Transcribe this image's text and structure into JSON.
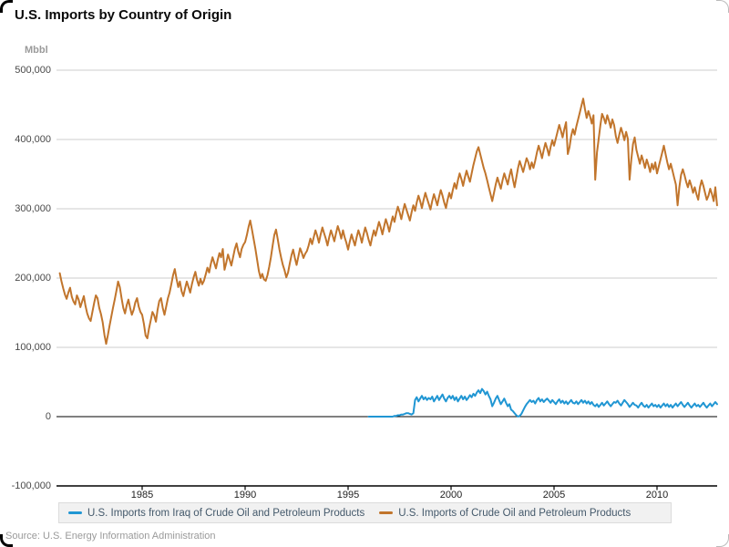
{
  "header": {
    "title": "U.S. Imports by Country of Origin"
  },
  "source": {
    "text": "Source: U.S. Energy Information Administration"
  },
  "chart_data": {
    "type": "line",
    "title": "U.S. Imports by Country of Origin",
    "unit_label": "Mbbl",
    "ylabel": "Mbbl",
    "xlabel": "",
    "grid": true,
    "legend_position": "bottom",
    "y_axis": {
      "min": -100000,
      "max": 500000,
      "tick_interval": 100000,
      "ticks": [
        {
          "value": 500000,
          "label": "500,000"
        },
        {
          "value": 400000,
          "label": "400,000"
        },
        {
          "value": 300000,
          "label": "300,000"
        },
        {
          "value": 200000,
          "label": "200,000"
        },
        {
          "value": 100000,
          "label": "100,000"
        },
        {
          "value": 0,
          "label": "0"
        },
        {
          "value": -100000,
          "label": "-100,000"
        }
      ]
    },
    "x_axis": {
      "start_year": 1981,
      "end_year": 2013,
      "interval": "monthly",
      "ticks": [
        {
          "year": 1985,
          "label": "1985"
        },
        {
          "year": 1990,
          "label": "1990"
        },
        {
          "year": 1995,
          "label": "1995"
        },
        {
          "year": 2000,
          "label": "2000"
        },
        {
          "year": 2005,
          "label": "2005"
        },
        {
          "year": 2010,
          "label": "2010"
        }
      ]
    },
    "series": [
      {
        "name": "U.S. Imports from Iraq of Crude Oil and Petroleum Products",
        "color": "#2096d3",
        "start": "1996-01",
        "interval": "monthly",
        "values": [
          0,
          0,
          0,
          0,
          0,
          0,
          0,
          0,
          0,
          0,
          0,
          0,
          0,
          0,
          0,
          1000,
          1000,
          2000,
          2000,
          3000,
          3000,
          4000,
          5000,
          5000,
          4000,
          3000,
          5000,
          24000,
          28000,
          22000,
          26000,
          30000,
          25000,
          28000,
          24000,
          27000,
          25000,
          29000,
          22000,
          26000,
          30000,
          24000,
          28000,
          32000,
          26000,
          22000,
          27000,
          30000,
          26000,
          30000,
          24000,
          28000,
          22000,
          26000,
          30000,
          25000,
          29000,
          24000,
          27000,
          31000,
          28000,
          33000,
          30000,
          35000,
          38000,
          34000,
          40000,
          37000,
          32000,
          36000,
          30000,
          25000,
          15000,
          20000,
          26000,
          30000,
          24000,
          18000,
          22000,
          26000,
          20000,
          15000,
          18000,
          10000,
          8000,
          5000,
          2000,
          0,
          1000,
          4000,
          9000,
          14000,
          18000,
          21000,
          24000,
          21000,
          23000,
          19000,
          24000,
          27000,
          22000,
          25000,
          21000,
          24000,
          26000,
          23000,
          20000,
          24000,
          21000,
          18000,
          22000,
          25000,
          20000,
          23000,
          19000,
          22000,
          18000,
          21000,
          24000,
          20000,
          19000,
          22000,
          18000,
          21000,
          24000,
          20000,
          23000,
          19000,
          22000,
          18000,
          21000,
          17000,
          15000,
          18000,
          14000,
          17000,
          20000,
          16000,
          19000,
          22000,
          18000,
          15000,
          18000,
          21000,
          20000,
          23000,
          19000,
          16000,
          20000,
          24000,
          21000,
          18000,
          14000,
          17000,
          20000,
          17000,
          16000,
          13000,
          17000,
          20000,
          16000,
          14000,
          17000,
          13000,
          16000,
          19000,
          15000,
          17000,
          14000,
          17000,
          13000,
          16000,
          19000,
          15000,
          18000,
          14000,
          17000,
          13000,
          16000,
          19000,
          15000,
          18000,
          21000,
          17000,
          14000,
          17000,
          20000,
          16000,
          13000,
          16000,
          19000,
          15000,
          17000,
          14000,
          17000,
          20000,
          16000,
          13000,
          16000,
          19000,
          15000,
          18000,
          21000,
          18000
        ]
      },
      {
        "name": "U.S. Imports of Crude Oil and Petroleum Products",
        "color": "#c1752c",
        "start": "1981-01",
        "interval": "monthly",
        "values": [
          207000,
          195000,
          185000,
          176000,
          170000,
          179000,
          186000,
          173000,
          166000,
          162000,
          175000,
          169000,
          158000,
          166000,
          174000,
          160000,
          149000,
          142000,
          138000,
          151000,
          164000,
          175000,
          171000,
          157000,
          148000,
          136000,
          118000,
          105000,
          117000,
          131000,
          144000,
          157000,
          169000,
          182000,
          195000,
          187000,
          171000,
          157000,
          149000,
          161000,
          169000,
          157000,
          147000,
          154000,
          165000,
          171000,
          159000,
          151000,
          147000,
          134000,
          117000,
          113000,
          127000,
          139000,
          151000,
          146000,
          137000,
          154000,
          167000,
          171000,
          157000,
          147000,
          159000,
          171000,
          179000,
          191000,
          204000,
          213000,
          199000,
          187000,
          195000,
          181000,
          174000,
          185000,
          195000,
          187000,
          179000,
          191000,
          201000,
          209000,
          197000,
          189000,
          199000,
          191000,
          196000,
          205000,
          215000,
          208000,
          220000,
          230000,
          222000,
          214000,
          226000,
          236000,
          230000,
          242000,
          212000,
          222000,
          234000,
          226000,
          218000,
          230000,
          242000,
          250000,
          238000,
          230000,
          242000,
          248000,
          252000,
          262000,
          274000,
          283000,
          270000,
          256000,
          242000,
          226000,
          210000,
          200000,
          206000,
          198000,
          196000,
          204000,
          216000,
          230000,
          246000,
          262000,
          270000,
          256000,
          241000,
          229000,
          219000,
          211000,
          201000,
          208000,
          221000,
          233000,
          241000,
          229000,
          219000,
          231000,
          243000,
          237000,
          229000,
          235000,
          239000,
          247000,
          257000,
          249000,
          259000,
          269000,
          261000,
          251000,
          263000,
          273000,
          265000,
          257000,
          247000,
          259000,
          269000,
          261000,
          253000,
          265000,
          275000,
          267000,
          257000,
          269000,
          259000,
          251000,
          241000,
          253000,
          263000,
          255000,
          247000,
          259000,
          269000,
          261000,
          251000,
          263000,
          273000,
          265000,
          255000,
          247000,
          259000,
          269000,
          261000,
          271000,
          281000,
          273000,
          263000,
          275000,
          285000,
          277000,
          267000,
          279000,
          289000,
          281000,
          293000,
          303000,
          295000,
          285000,
          297000,
          307000,
          299000,
          291000,
          283000,
          295000,
          305000,
          297000,
          309000,
          319000,
          311000,
          301000,
          313000,
          323000,
          315000,
          307000,
          299000,
          311000,
          321000,
          313000,
          305000,
          317000,
          327000,
          319000,
          309000,
          301000,
          313000,
          323000,
          315000,
          327000,
          337000,
          329000,
          341000,
          351000,
          343000,
          333000,
          345000,
          355000,
          347000,
          339000,
          351000,
          363000,
          373000,
          383000,
          389000,
          379000,
          369000,
          359000,
          351000,
          341000,
          331000,
          321000,
          311000,
          323000,
          335000,
          345000,
          337000,
          329000,
          341000,
          351000,
          343000,
          335000,
          347000,
          357000,
          343000,
          331000,
          345000,
          359000,
          369000,
          361000,
          353000,
          363000,
          373000,
          367000,
          357000,
          367000,
          359000,
          369000,
          381000,
          391000,
          383000,
          373000,
          385000,
          395000,
          387000,
          377000,
          389000,
          399000,
          391000,
          401000,
          411000,
          421000,
          413000,
          403000,
          415000,
          425000,
          379000,
          389000,
          405000,
          415000,
          407000,
          419000,
          429000,
          439000,
          449000,
          459000,
          444000,
          431000,
          441000,
          433000,
          423000,
          435000,
          342000,
          381000,
          401000,
          421000,
          437000,
          431000,
          423000,
          435000,
          427000,
          417000,
          429000,
          421000,
          405000,
          395000,
          407000,
          417000,
          409000,
          399000,
          411000,
          401000,
          342000,
          371000,
          393000,
          403000,
          385000,
          375000,
          365000,
          377000,
          369000,
          359000,
          371000,
          363000,
          353000,
          365000,
          357000,
          367000,
          351000,
          361000,
          371000,
          381000,
          391000,
          379000,
          367000,
          357000,
          365000,
          355000,
          345000,
          335000,
          305000,
          331000,
          349000,
          357000,
          349000,
          339000,
          331000,
          341000,
          333000,
          323000,
          331000,
          321000,
          313000,
          331000,
          341000,
          333000,
          323000,
          313000,
          319000,
          329000,
          321000,
          311000,
          331000,
          305000
        ]
      }
    ]
  },
  "legend": {
    "items": [
      {
        "label": "U.S. Imports from Iraq of Crude Oil and Petroleum Products",
        "color": "#2096d3"
      },
      {
        "label": "U.S. Imports of Crude Oil and Petroleum Products",
        "color": "#c1752c"
      }
    ]
  },
  "colors": {
    "gridline": "#cccccc",
    "zero_line": "#000000",
    "axis_line": "#000000",
    "legend_bg": "#f1f1f1",
    "legend_text": "#44596b"
  }
}
